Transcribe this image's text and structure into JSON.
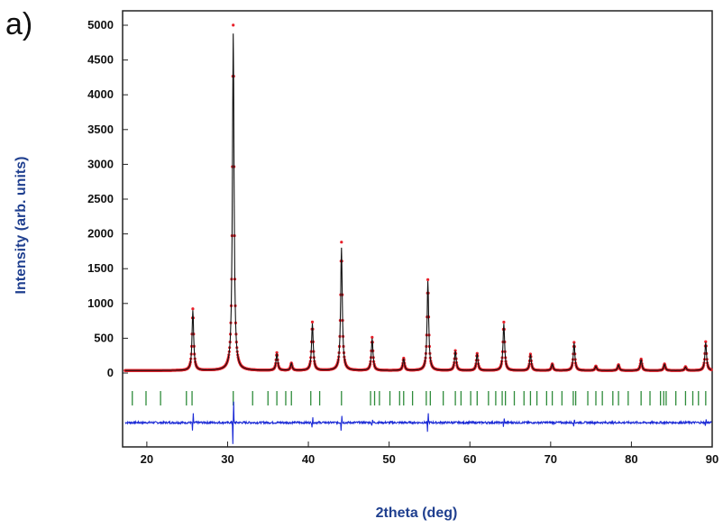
{
  "panel_label": "a)",
  "chart_data": {
    "type": "line",
    "title": "",
    "xlabel": "2theta (deg)",
    "ylabel": "Intensity (arb. units)",
    "xlim": [
      17,
      90
    ],
    "ylim": [
      0,
      5100
    ],
    "x_ticks": [
      20,
      30,
      40,
      50,
      60,
      70,
      80,
      90
    ],
    "y_ticks": [
      0,
      500,
      1000,
      1500,
      2000,
      2500,
      3000,
      3500,
      4000,
      4500,
      5000
    ],
    "grid": false,
    "legend": "none",
    "colors": {
      "observed": "#e8202a",
      "calculated": "#111111",
      "bragg": "#2e8b3a",
      "difference": "#1c2bd6"
    },
    "series": [
      {
        "role": "observed",
        "x": [
          17.5,
          22.0,
          25.7,
          30.7,
          36.1,
          37.9,
          40.5,
          44.1,
          47.9,
          51.8,
          54.8,
          58.2,
          60.9,
          64.2,
          67.5,
          70.2,
          72.9,
          75.6,
          78.4,
          81.2,
          84.1,
          86.7,
          89.2
        ],
        "y": [
          40,
          30,
          920,
          5000,
          290,
          140,
          730,
          1880,
          510,
          210,
          1340,
          320,
          280,
          730,
          270,
          130,
          440,
          100,
          120,
          200,
          130,
          90,
          450
        ]
      },
      {
        "role": "calculated",
        "x": [
          17.5,
          22.0,
          25.7,
          30.7,
          36.1,
          37.9,
          40.5,
          44.1,
          47.9,
          51.8,
          54.8,
          58.2,
          60.9,
          64.2,
          67.5,
          70.2,
          72.9,
          75.6,
          78.4,
          81.2,
          84.1,
          86.7,
          89.2
        ],
        "y": [
          40,
          30,
          900,
          4880,
          280,
          135,
          710,
          1800,
          495,
          205,
          1320,
          315,
          275,
          710,
          265,
          125,
          430,
          95,
          115,
          195,
          125,
          85,
          440
        ]
      }
    ],
    "bragg_positions": [
      18.2,
      19.9,
      21.7,
      24.9,
      25.6,
      30.7,
      33.1,
      35.0,
      36.1,
      37.2,
      37.9,
      40.3,
      41.4,
      44.1,
      47.7,
      48.2,
      48.8,
      50.1,
      51.3,
      51.8,
      52.9,
      54.6,
      55.1,
      56.7,
      58.2,
      58.9,
      60.1,
      60.9,
      62.3,
      63.2,
      64.0,
      64.4,
      65.5,
      66.7,
      67.5,
      68.3,
      69.5,
      70.2,
      71.4,
      72.8,
      73.1,
      74.6,
      75.6,
      76.4,
      77.7,
      78.4,
      79.6,
      81.2,
      82.3,
      83.6,
      84.0,
      84.3,
      85.5,
      86.7,
      87.6,
      88.3,
      89.2
    ],
    "difference_spikes": [
      {
        "x": 25.7,
        "amp": 180
      },
      {
        "x": 30.7,
        "amp": 450
      },
      {
        "x": 40.5,
        "amp": 90
      },
      {
        "x": 44.1,
        "amp": 160
      },
      {
        "x": 47.9,
        "amp": 70
      },
      {
        "x": 54.8,
        "amp": 220
      },
      {
        "x": 64.2,
        "amp": 80
      },
      {
        "x": 72.9,
        "amp": 60
      },
      {
        "x": 89.2,
        "amp": 80
      }
    ]
  }
}
